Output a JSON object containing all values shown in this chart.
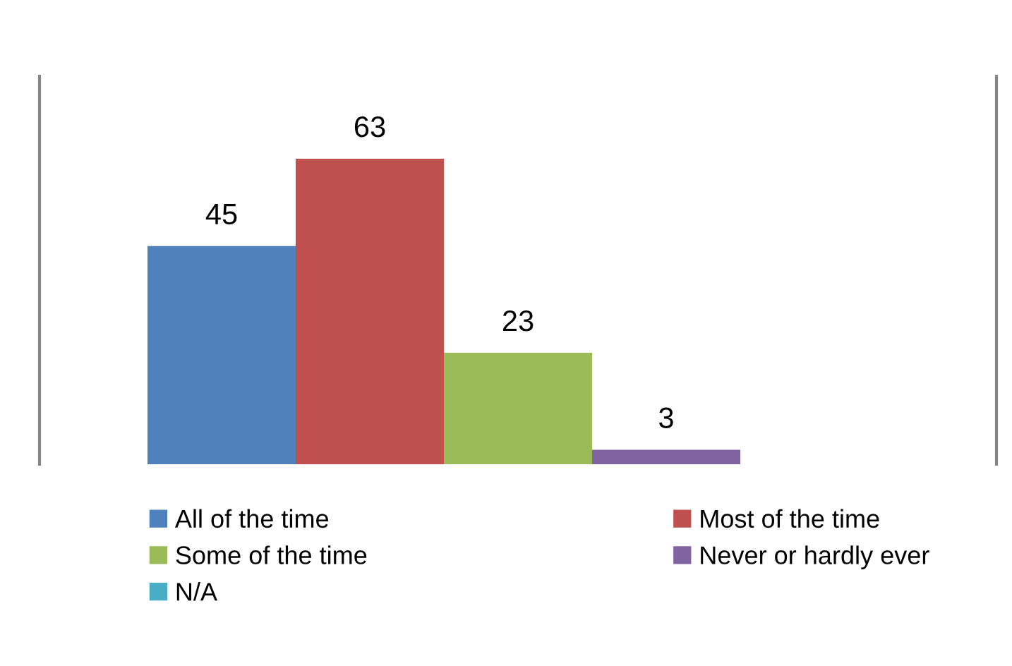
{
  "chart_data": {
    "type": "bar",
    "categories": [
      null
    ],
    "series": [
      {
        "name": "All of the time",
        "color": "#4f81bd",
        "values": [
          45
        ]
      },
      {
        "name": "Most of the time",
        "color": "#c0504d",
        "values": [
          63
        ]
      },
      {
        "name": "Some of the time",
        "color": "#9bbb59",
        "values": [
          23
        ]
      },
      {
        "name": "Never or hardly ever",
        "color": "#8064a2",
        "values": [
          3
        ]
      },
      {
        "name": "N/A",
        "color": "#4bacc6",
        "values": [
          null
        ]
      }
    ],
    "ylim": [
      0,
      80
    ],
    "data_labels": true,
    "legend": "bottom",
    "grid": false,
    "tick_labels": false
  }
}
